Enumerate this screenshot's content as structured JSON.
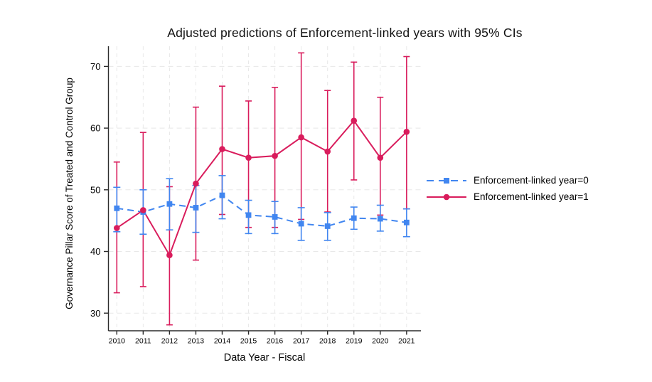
{
  "window": {
    "background": "#ffffff"
  },
  "chart_data": {
    "type": "line",
    "title": "Adjusted predictions of Enforcement-linked years with 95% CIs",
    "xlabel": "Data Year - Fiscal",
    "ylabel": "Governance Pillar Score of Treated and Control Group",
    "categories": [
      2010,
      2011,
      2012,
      2013,
      2014,
      2015,
      2016,
      2017,
      2018,
      2019,
      2020,
      2021
    ],
    "y_ticks": [
      30,
      40,
      50,
      60,
      70
    ],
    "ylim": [
      27,
      73.5
    ],
    "grid": "both-axes-dashed-light-grey",
    "legend_position": "right-outside-middle",
    "error_bars": "95% confidence intervals with caps",
    "series": [
      {
        "name": "Enforcement-linked year=0",
        "marker": "square",
        "line_style": "dashed",
        "color": "#4186f0",
        "values": [
          47.0,
          46.4,
          47.7,
          47.1,
          49.1,
          45.9,
          45.6,
          44.5,
          44.1,
          45.4,
          45.3,
          44.7
        ],
        "ci_low": [
          43.2,
          42.8,
          43.5,
          43.1,
          45.3,
          42.9,
          42.9,
          41.8,
          41.8,
          43.6,
          43.3,
          42.4
        ],
        "ci_high": [
          50.4,
          50.0,
          51.8,
          50.7,
          52.3,
          48.3,
          48.1,
          47.1,
          46.3,
          47.2,
          47.5,
          46.9
        ]
      },
      {
        "name": "Enforcement-linked year=1",
        "marker": "circle",
        "line_style": "solid",
        "color": "#d91c5c",
        "values": [
          43.8,
          46.7,
          39.4,
          51.0,
          56.6,
          55.2,
          55.5,
          58.5,
          56.2,
          61.2,
          55.2,
          59.4
        ],
        "ci_low": [
          33.3,
          34.3,
          28.1,
          38.6,
          46.0,
          43.9,
          43.9,
          45.2,
          46.4,
          51.6,
          45.9,
          46.9
        ],
        "ci_high": [
          54.5,
          59.3,
          50.5,
          63.4,
          66.8,
          64.4,
          66.6,
          72.2,
          66.1,
          70.7,
          65.0,
          71.6
        ]
      }
    ],
    "style": {
      "axis_color": "#2b2b2b",
      "grid_color": "#e8e8e8",
      "tick_label_color": "#000000"
    }
  }
}
